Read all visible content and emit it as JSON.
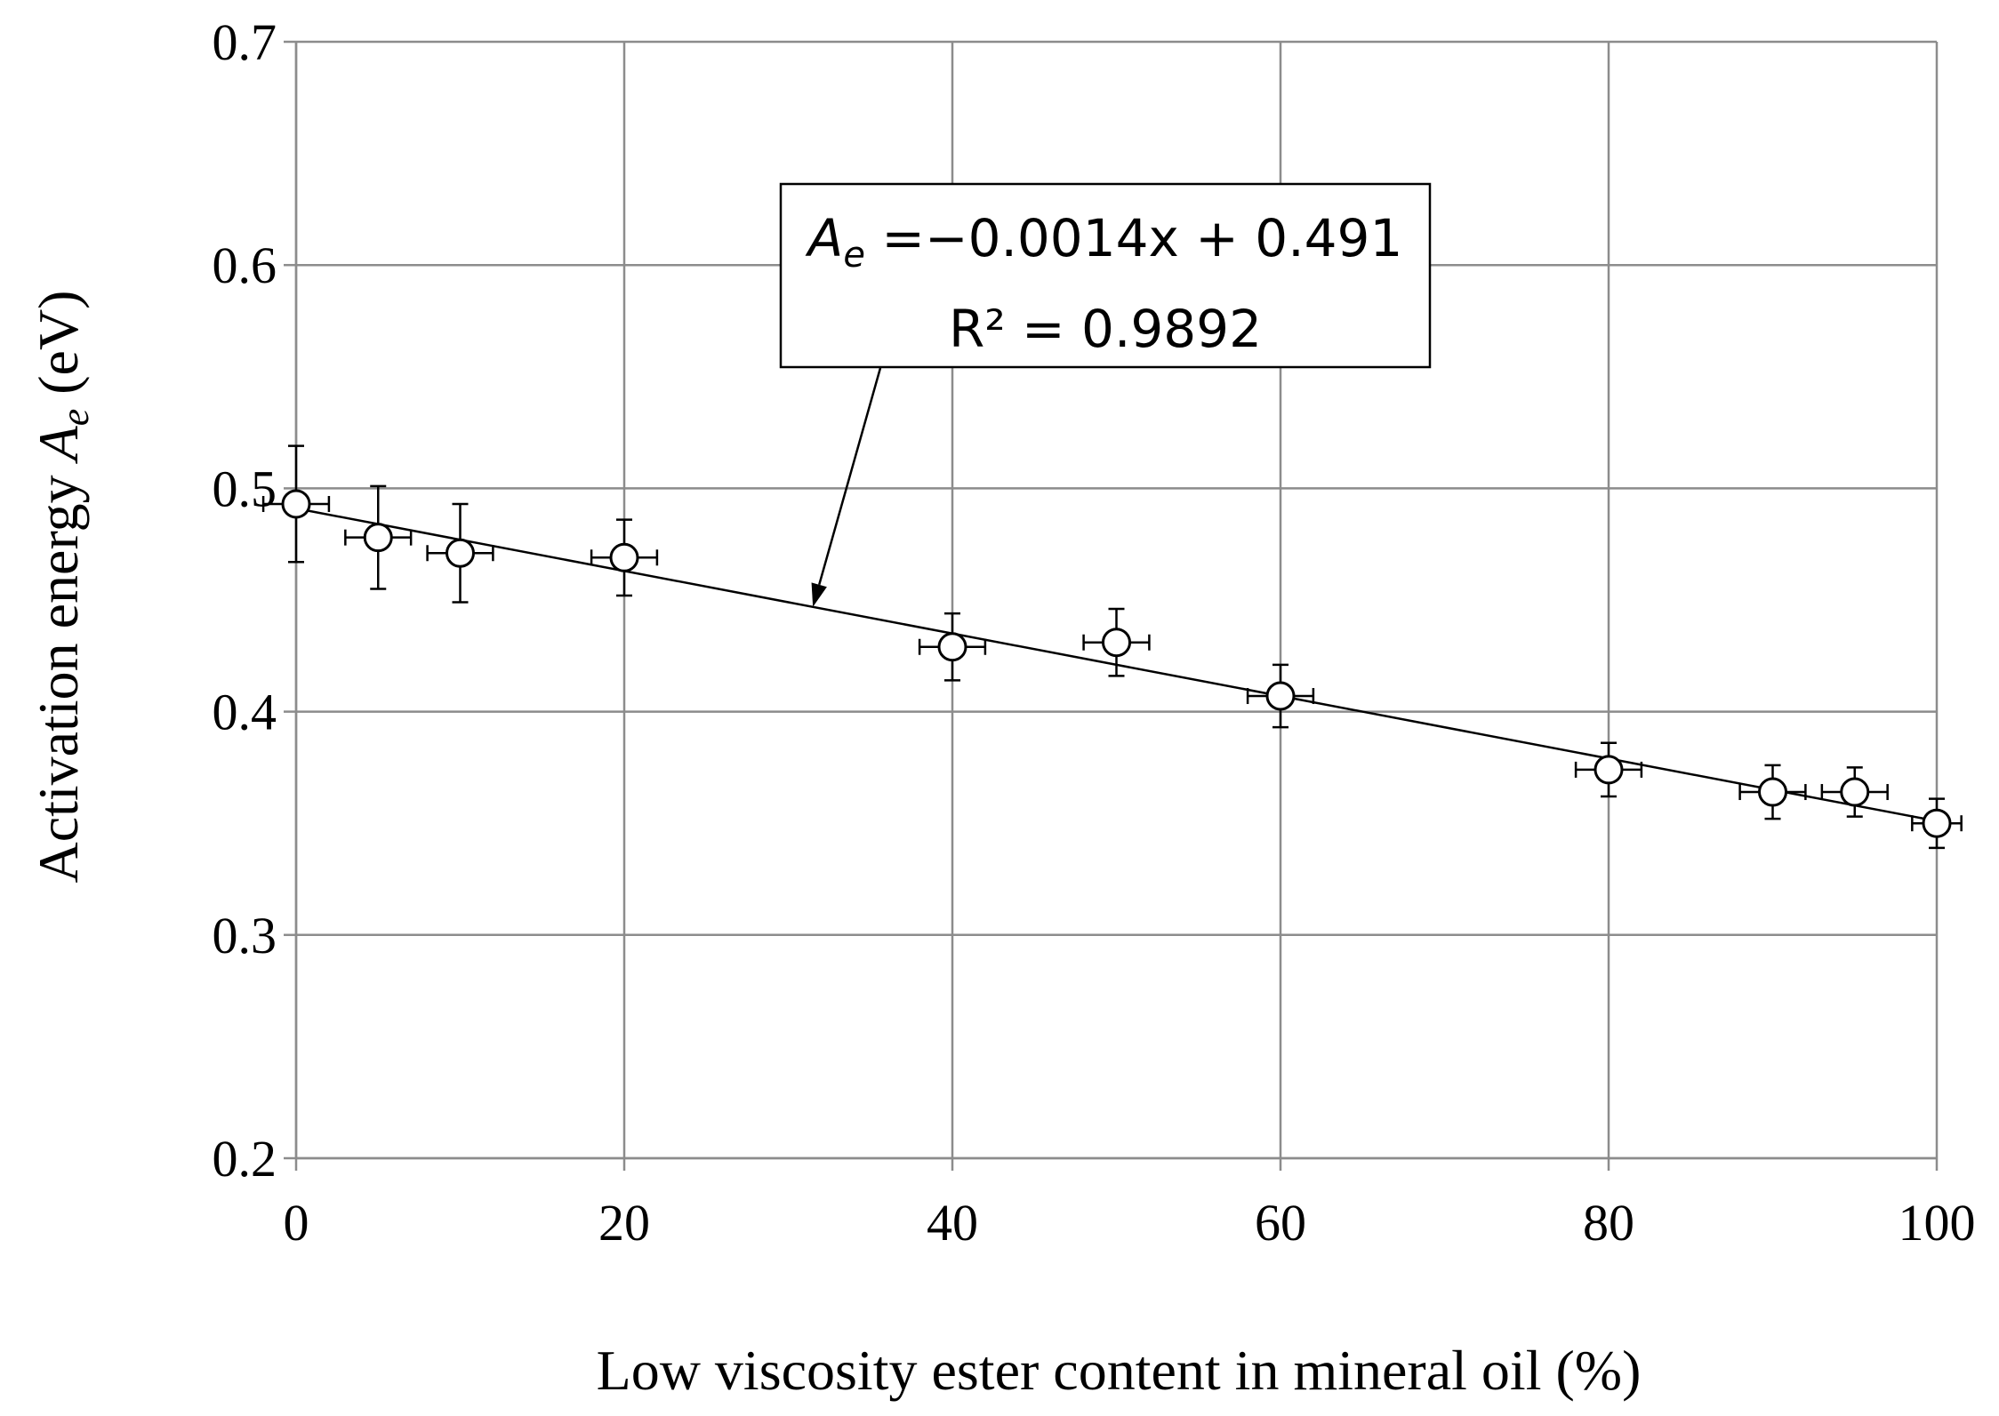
{
  "chart_data": {
    "type": "scatter",
    "title": "",
    "xlabel": "Low viscosity ester content in mineral oil (%)",
    "ylabel_prefix": "Activation energy ",
    "ylabel_symbol": "A",
    "ylabel_subscript": "e",
    "ylabel_suffix": " (eV)",
    "xlim": [
      0,
      100
    ],
    "ylim": [
      0.2,
      0.7
    ],
    "x_ticks": [
      0,
      20,
      40,
      60,
      80,
      100
    ],
    "x_tick_labels": [
      "0",
      "20",
      "40",
      "60",
      "80",
      "100"
    ],
    "y_ticks": [
      0.2,
      0.3,
      0.4,
      0.5,
      0.6,
      0.7
    ],
    "y_tick_labels": [
      "0.2",
      "0.3",
      "0.4",
      "0.5",
      "0.6",
      "0.7"
    ],
    "grid": true,
    "series": [
      {
        "name": "Activation energy",
        "marker": "open-circle",
        "points": [
          {
            "x": 0,
            "y": 0.493,
            "xerr": 2,
            "yerr": 0.026
          },
          {
            "x": 5,
            "y": 0.478,
            "xerr": 2,
            "yerr": 0.023
          },
          {
            "x": 10,
            "y": 0.471,
            "xerr": 2,
            "yerr": 0.022
          },
          {
            "x": 20,
            "y": 0.469,
            "xerr": 2,
            "yerr": 0.017
          },
          {
            "x": 40,
            "y": 0.429,
            "xerr": 2,
            "yerr": 0.015
          },
          {
            "x": 50,
            "y": 0.431,
            "xerr": 2,
            "yerr": 0.015
          },
          {
            "x": 60,
            "y": 0.407,
            "xerr": 2,
            "yerr": 0.014
          },
          {
            "x": 80,
            "y": 0.374,
            "xerr": 2,
            "yerr": 0.012
          },
          {
            "x": 90,
            "y": 0.364,
            "xerr": 2,
            "yerr": 0.012
          },
          {
            "x": 95,
            "y": 0.364,
            "xerr": 2,
            "yerr": 0.011
          },
          {
            "x": 100,
            "y": 0.35,
            "xerr": 1.5,
            "yerr": 0.011
          }
        ]
      }
    ],
    "trendline": {
      "slope": -0.0014,
      "intercept": 0.491,
      "x_range": [
        0,
        100
      ]
    },
    "annotation": {
      "eq_symbol": "A",
      "eq_subscript": "e",
      "eq_rest": " =−0.0014x + 0.491",
      "r2_text": "R² = 0.9892",
      "arrow_target_x": 31.5
    }
  }
}
